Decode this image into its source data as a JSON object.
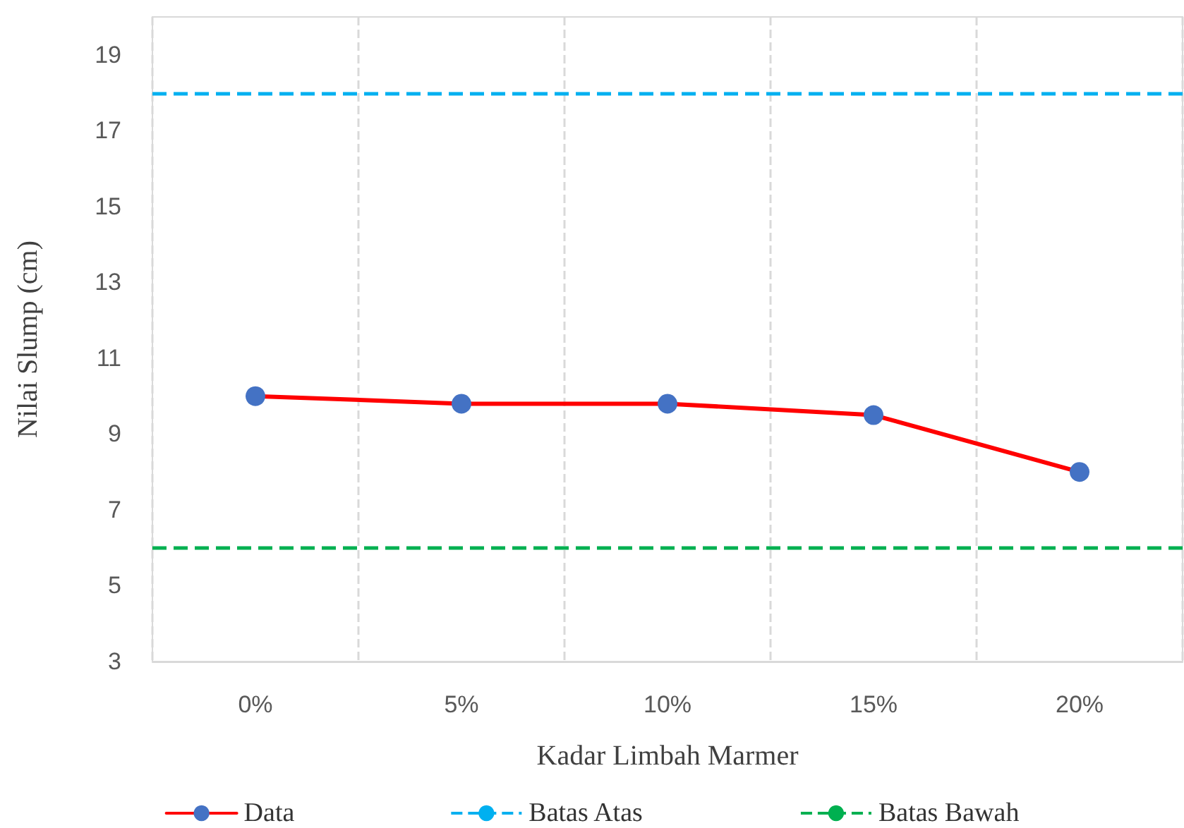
{
  "chart_data": {
    "type": "line",
    "xlabel": "Kadar Limbah Marmer",
    "ylabel": "Nilai Slump (cm)",
    "categories": [
      "0%",
      "5%",
      "10%",
      "15%",
      "20%"
    ],
    "series": [
      {
        "name": "Data",
        "color": "#ff0000",
        "colors": [
          "#4472c4",
          "#4472c4",
          "#4472c4",
          "#4472c4",
          "#4472c4"
        ],
        "values": [
          10,
          9.8,
          9.8,
          9.5,
          8
        ]
      }
    ],
    "ref_lines": [
      {
        "axis": "y",
        "value": 18,
        "label": "Batas Atas",
        "color": "#00b0f0",
        "line_style": "dashed"
      },
      {
        "axis": "y",
        "value": 6,
        "label": "Batas Bawah",
        "color": "#00b050",
        "line_style": "dashed"
      }
    ],
    "ylim": [
      3,
      20
    ],
    "yticks": [
      3,
      5,
      7,
      9,
      11,
      13,
      15,
      17,
      19
    ],
    "grid": "x",
    "legend": "bottom",
    "marker": "circle",
    "line_style": "solid"
  }
}
